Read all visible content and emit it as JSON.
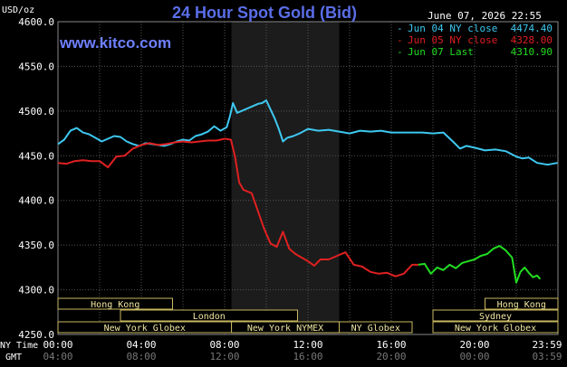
{
  "chart_data": {
    "type": "line",
    "title": "24 Hour Spot Gold (Bid)",
    "website": "www.kitco.com",
    "timestamp": "June 07, 2026 22:55",
    "ylabel": "USD/oz",
    "ylim": [
      4250,
      4600
    ],
    "y_ticks": [
      "4600.0",
      "4550.0",
      "4500.0",
      "4450.0",
      "4400.0",
      "4350.0",
      "4300.0",
      "4250.0"
    ],
    "x_label_ny": "NY Time",
    "x_label_gmt": "GMT",
    "x_ticks_ny": [
      "00:00",
      "04:00",
      "08:00",
      "12:00",
      "16:00",
      "20:00",
      "23:59"
    ],
    "x_ticks_gmt": [
      "04:00",
      "08:00",
      "12:00",
      "16:00",
      "20:00",
      "00:00",
      "03:59"
    ],
    "shaded_hours": [
      8.33,
      13.5
    ],
    "legend": [
      {
        "label": "Jun 04 NY close",
        "value": "4474.40",
        "color": "#3ec8f0"
      },
      {
        "label": "Jun 05 NY close",
        "value": "4328.00",
        "color": "#e02020"
      },
      {
        "label": "Jun 07 Last",
        "value": "4310.90",
        "color": "#22dd22"
      }
    ],
    "series": [
      {
        "name": "Jun 04 NY close",
        "color": "#3ec8f0",
        "x": [
          0,
          0.3,
          0.6,
          0.9,
          1.2,
          1.5,
          1.8,
          2.1,
          2.4,
          2.7,
          3,
          3.3,
          3.6,
          3.9,
          4.2,
          4.5,
          4.8,
          5.1,
          5.4,
          5.7,
          6,
          6.3,
          6.6,
          6.9,
          7.2,
          7.5,
          7.8,
          8.1,
          8.25,
          8.4,
          8.6,
          8.8,
          9,
          9.2,
          9.4,
          9.6,
          9.8,
          10,
          10.2,
          10.4,
          10.6,
          10.8,
          11,
          11.3,
          11.6,
          12,
          12.5,
          13,
          13.5,
          14,
          14.5,
          15,
          15.5,
          16,
          16.5,
          17,
          17.5,
          18,
          18.5,
          19,
          19.3,
          19.6,
          20,
          20.5,
          21,
          21.5,
          22,
          22.3,
          22.6,
          23,
          23.5,
          23.98
        ],
        "values": [
          4463,
          4468,
          4478,
          4481,
          4476,
          4474,
          4470,
          4466,
          4469,
          4472,
          4471,
          4466,
          4463,
          4461,
          4464,
          4463,
          4462,
          4461,
          4463,
          4466,
          4468,
          4467,
          4472,
          4474,
          4477,
          4483,
          4478,
          4482,
          4494,
          4509,
          4498,
          4500,
          4502,
          4504,
          4506,
          4508,
          4509,
          4512,
          4502,
          4492,
          4480,
          4466,
          4470,
          4472,
          4475,
          4480,
          4478,
          4479,
          4477,
          4475,
          4478,
          4477,
          4478,
          4476,
          4476,
          4476,
          4476,
          4475,
          4476,
          4465,
          4458,
          4461,
          4459,
          4456,
          4457,
          4455,
          4449,
          4447,
          4448,
          4442,
          4440,
          4442
        ]
      },
      {
        "name": "Jun 05 NY close",
        "color": "#e02020",
        "x": [
          0,
          0.4,
          0.8,
          1.2,
          1.6,
          2,
          2.4,
          2.8,
          3.2,
          3.6,
          4,
          4.4,
          4.8,
          5.2,
          5.6,
          6,
          6.4,
          6.8,
          7.2,
          7.6,
          8,
          8.3,
          8.5,
          8.7,
          8.9,
          9.1,
          9.3,
          9.6,
          9.9,
          10.2,
          10.5,
          10.8,
          11.1,
          11.4,
          11.7,
          12,
          12.3,
          12.6,
          13,
          13.4,
          13.8,
          14.2,
          14.6,
          15,
          15.4,
          15.8,
          16.2,
          16.6,
          17,
          17.3
        ],
        "values": [
          4442,
          4441,
          4444,
          4445,
          4444,
          4444,
          4437,
          4449,
          4450,
          4458,
          4462,
          4464,
          4462,
          4463,
          4465,
          4466,
          4465,
          4466,
          4467,
          4467,
          4469,
          4468,
          4449,
          4420,
          4412,
          4410,
          4408,
          4388,
          4368,
          4352,
          4348,
          4365,
          4346,
          4340,
          4336,
          4332,
          4327,
          4334,
          4334,
          4338,
          4342,
          4328,
          4326,
          4320,
          4318,
          4319,
          4315,
          4318,
          4328,
          4328
        ]
      },
      {
        "name": "Jun 07 Last",
        "color": "#22dd22",
        "x": [
          17.3,
          17.6,
          17.9,
          18.2,
          18.5,
          18.8,
          19.1,
          19.4,
          19.7,
          20,
          20.3,
          20.6,
          20.9,
          21.2,
          21.5,
          21.8,
          22,
          22.2,
          22.4,
          22.6,
          22.8,
          23,
          23.15
        ],
        "values": [
          4328,
          4329,
          4318,
          4325,
          4322,
          4328,
          4324,
          4330,
          4332,
          4334,
          4338,
          4340,
          4346,
          4349,
          4344,
          4336,
          4308,
          4320,
          4325,
          4319,
          4314,
          4316,
          4312
        ]
      }
    ],
    "sessions": [
      {
        "label": "Hong Kong",
        "start": 0,
        "end": 5.5,
        "row": 0
      },
      {
        "label": "Hong Kong",
        "start": 20.5,
        "end": 24,
        "row": 0
      },
      {
        "label": "London",
        "start": 3,
        "end": 11.5,
        "row": 1
      },
      {
        "label": "Sydney",
        "start": 18,
        "end": 24,
        "row": 1
      },
      {
        "label": "New York Globex",
        "start": 0,
        "end": 8.33,
        "row": 2
      },
      {
        "label": "New York NYMEX",
        "start": 8.33,
        "end": 13.5,
        "row": 2
      },
      {
        "label": "NY Globex",
        "start": 13.5,
        "end": 17,
        "row": 2
      },
      {
        "label": "New York Globex",
        "start": 18,
        "end": 24,
        "row": 2
      }
    ]
  }
}
